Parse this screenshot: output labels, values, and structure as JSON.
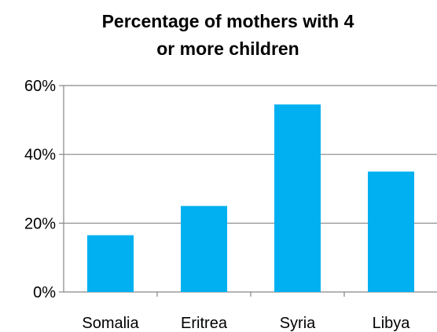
{
  "chart_data": {
    "type": "bar",
    "title_lines": [
      "Percentage of mothers with 4",
      "or more children"
    ],
    "categories": [
      "Somalia",
      "Eritrea",
      "Syria",
      "Libya"
    ],
    "values": [
      16.5,
      25,
      54.5,
      35
    ],
    "value_unit": "%",
    "ylim": [
      0,
      60
    ],
    "yticks": [
      0,
      20,
      40,
      60
    ],
    "ytick_labels": [
      "0%",
      "20%",
      "40%",
      "60%"
    ],
    "grid": true,
    "legend": "none",
    "bar_color": "#00b0f0",
    "grid_color": "#868686",
    "axis_color": "#868686"
  }
}
